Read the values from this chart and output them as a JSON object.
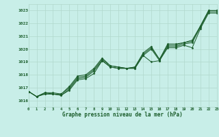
{
  "title": "Graphe pression niveau de la mer (hPa)",
  "background_color": "#c8eee8",
  "grid_color": "#b0d8cc",
  "line_color": "#1a5c2a",
  "marker_color": "#1a5c2a",
  "xmin": 0,
  "xmax": 23,
  "ymin": 1015.5,
  "ymax": 1023.5,
  "series": [
    [
      1016.7,
      1016.3,
      1016.5,
      1016.5,
      1016.4,
      1016.8,
      1017.6,
      1017.7,
      1018.1,
      1019.1,
      1018.6,
      1018.5,
      1018.5,
      1018.5,
      1019.5,
      1019.0,
      1019.1,
      1020.1,
      1020.1,
      1020.3,
      1020.1,
      1021.6,
      1022.8,
      1022.8
    ],
    [
      1016.7,
      1016.3,
      1016.5,
      1016.5,
      1016.4,
      1016.9,
      1017.7,
      1017.8,
      1018.3,
      1019.1,
      1018.6,
      1018.5,
      1018.5,
      1018.5,
      1019.5,
      1020.0,
      1019.1,
      1020.2,
      1020.2,
      1020.4,
      1020.5,
      1021.7,
      1022.9,
      1022.9
    ],
    [
      1016.7,
      1016.3,
      1016.6,
      1016.5,
      1016.5,
      1017.0,
      1017.8,
      1017.9,
      1018.4,
      1019.2,
      1018.7,
      1018.6,
      1018.5,
      1018.6,
      1019.6,
      1020.1,
      1019.2,
      1020.3,
      1020.3,
      1020.5,
      1020.6,
      1021.8,
      1023.0,
      1023.0
    ],
    [
      1016.7,
      1016.3,
      1016.6,
      1016.6,
      1016.5,
      1017.1,
      1017.9,
      1018.0,
      1018.5,
      1019.3,
      1018.7,
      1018.6,
      1018.5,
      1018.6,
      1019.7,
      1020.2,
      1019.2,
      1020.4,
      1020.4,
      1020.5,
      1020.7,
      1021.8,
      1023.0,
      1023.0
    ]
  ],
  "yticks": [
    1016,
    1017,
    1018,
    1019,
    1020,
    1021,
    1022,
    1023
  ],
  "xtick_fontsize": 4.0,
  "ytick_fontsize": 4.5,
  "title_fontsize": 5.5,
  "linewidth": 0.7,
  "markersize": 1.5
}
